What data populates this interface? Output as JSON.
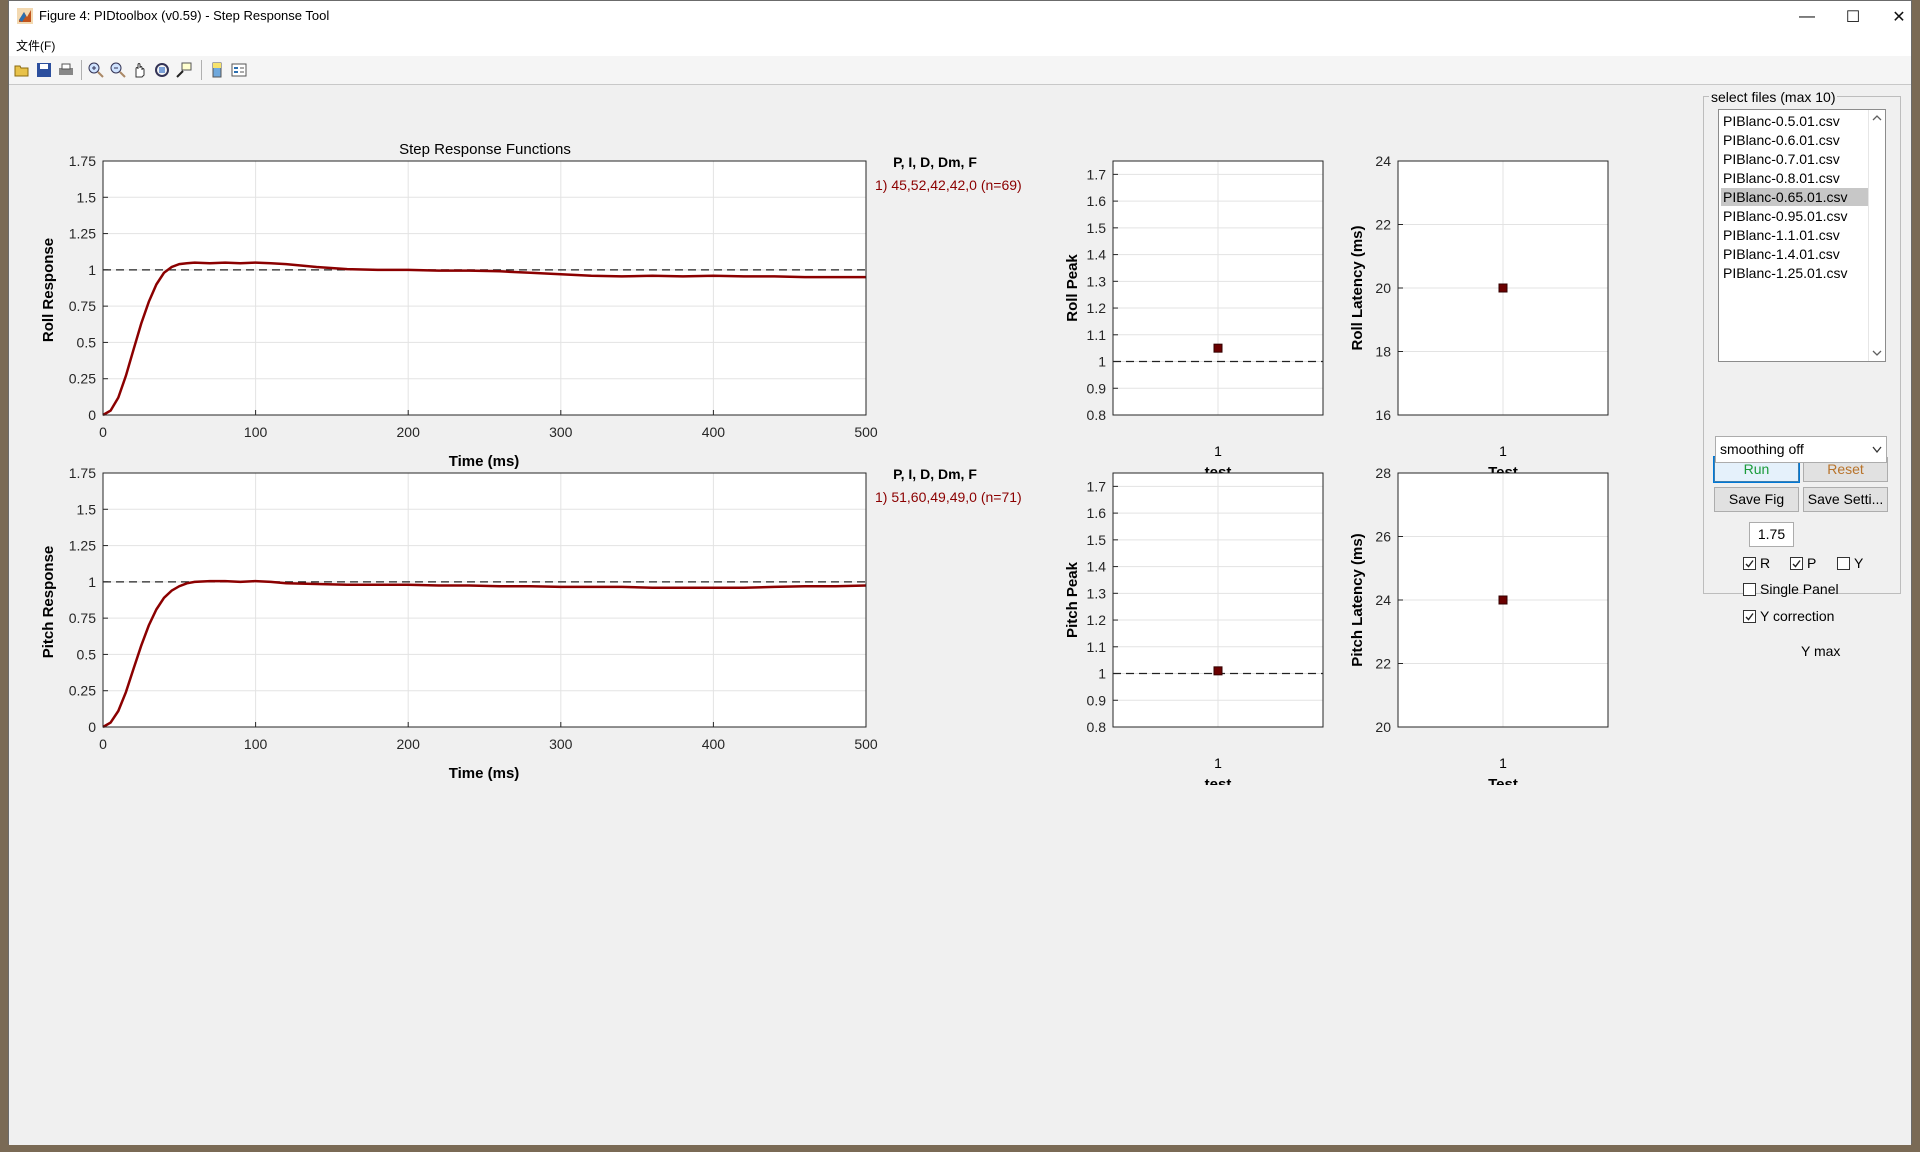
{
  "window": {
    "title": "Figure 4: PIDtoolbox (v0.59) - Step Response Tool",
    "controls": {
      "minimize": "—",
      "maximize": "☐",
      "close": "✕"
    }
  },
  "menu": {
    "file": "文件(F)"
  },
  "toolbar": {
    "buttons": [
      "open-icon",
      "save-icon",
      "print-icon",
      "zoom-in-icon",
      "zoom-out-icon",
      "pan-icon",
      "rotate-icon",
      "data-cursor-icon",
      "colorbar-icon",
      "legend-icon"
    ]
  },
  "plots": {
    "main_title": "Step Response Functions",
    "roll": {
      "ylabel": "Roll Response",
      "xlabel": "Time (ms)",
      "legend_header": "P, I, D, Dm, F",
      "legend_entry": "1) 45,52,42,42,0  (n=69)"
    },
    "pitch": {
      "ylabel": "Pitch Response",
      "xlabel": "Time (ms)",
      "legend_header": "P, I, D, Dm, F",
      "legend_entry": "1) 51,60,49,49,0  (n=71)"
    },
    "roll_peak": {
      "ylabel": "Roll Peak",
      "xlabel": "test",
      "xtick": "1"
    },
    "roll_latency": {
      "ylabel": "Roll Latency (ms)",
      "xlabel": "Test",
      "xtick": "1"
    },
    "pitch_peak": {
      "ylabel": "Pitch Peak",
      "xlabel": "test",
      "xtick": "1"
    },
    "pitch_latency": {
      "ylabel": "Pitch Latency (ms)",
      "xlabel": "Test",
      "xtick": "1"
    }
  },
  "chart_data": [
    {
      "type": "line",
      "name": "roll-step-response",
      "xlabel": "Time (ms)",
      "ylabel": "Roll Response",
      "xlim": [
        0,
        500
      ],
      "ylim": [
        0,
        1.75
      ],
      "xticks": [
        0,
        100,
        200,
        300,
        400,
        500
      ],
      "yticks": [
        0,
        0.25,
        0.5,
        0.75,
        1,
        1.25,
        1.5,
        1.75
      ],
      "ytick_labels": [
        "0",
        "0.25",
        "0.5",
        "0.75",
        "1",
        "1.25",
        "1.5",
        "1.75"
      ],
      "reference_line": 1,
      "grid": true,
      "series": [
        {
          "color": "#8b0000",
          "x": [
            0,
            5,
            10,
            15,
            20,
            25,
            30,
            35,
            40,
            45,
            50,
            55,
            60,
            70,
            80,
            90,
            100,
            110,
            120,
            140,
            160,
            180,
            200,
            220,
            240,
            260,
            280,
            300,
            320,
            340,
            360,
            380,
            400,
            420,
            440,
            460,
            480,
            500
          ],
          "y": [
            0,
            0.03,
            0.12,
            0.27,
            0.45,
            0.63,
            0.78,
            0.9,
            0.98,
            1.02,
            1.04,
            1.045,
            1.05,
            1.045,
            1.05,
            1.045,
            1.05,
            1.045,
            1.04,
            1.02,
            1.005,
            1.0,
            1.0,
            0.995,
            0.995,
            0.99,
            0.98,
            0.97,
            0.96,
            0.955,
            0.96,
            0.955,
            0.96,
            0.955,
            0.955,
            0.95,
            0.95,
            0.95
          ]
        }
      ]
    },
    {
      "type": "line",
      "name": "pitch-step-response",
      "xlabel": "Time (ms)",
      "ylabel": "Pitch Response",
      "xlim": [
        0,
        500
      ],
      "ylim": [
        0,
        1.75
      ],
      "xticks": [
        0,
        100,
        200,
        300,
        400,
        500
      ],
      "yticks": [
        0,
        0.25,
        0.5,
        0.75,
        1,
        1.25,
        1.5,
        1.75
      ],
      "ytick_labels": [
        "0",
        "0.25",
        "0.5",
        "0.75",
        "1",
        "1.25",
        "1.5",
        "1.75"
      ],
      "reference_line": 1,
      "grid": true,
      "series": [
        {
          "color": "#8b0000",
          "x": [
            0,
            5,
            10,
            15,
            20,
            25,
            30,
            35,
            40,
            45,
            50,
            55,
            60,
            70,
            80,
            90,
            100,
            110,
            120,
            140,
            160,
            180,
            200,
            220,
            240,
            260,
            280,
            300,
            320,
            340,
            360,
            380,
            400,
            420,
            440,
            460,
            480,
            500
          ],
          "y": [
            0,
            0.03,
            0.11,
            0.24,
            0.4,
            0.56,
            0.7,
            0.81,
            0.89,
            0.94,
            0.97,
            0.99,
            1.0,
            1.005,
            1.005,
            1.0,
            1.005,
            1.0,
            0.99,
            0.985,
            0.98,
            0.98,
            0.98,
            0.975,
            0.975,
            0.97,
            0.97,
            0.965,
            0.965,
            0.965,
            0.96,
            0.96,
            0.96,
            0.96,
            0.965,
            0.97,
            0.97,
            0.975
          ]
        }
      ]
    },
    {
      "type": "scatter",
      "name": "roll-peak",
      "ylabel": "Roll Peak",
      "xlabel": "test",
      "xlim": [
        0,
        2
      ],
      "ylim": [
        0.8,
        1.75
      ],
      "yticks": [
        0.8,
        0.9,
        1,
        1.1,
        1.2,
        1.3,
        1.4,
        1.5,
        1.6,
        1.7
      ],
      "ytick_labels": [
        "0.8",
        "0.9",
        "1",
        "1.1",
        "1.2",
        "1.3",
        "1.4",
        "1.5",
        "1.6",
        "1.7"
      ],
      "reference_line": 1,
      "points": [
        {
          "x": 1,
          "y": 1.05
        }
      ]
    },
    {
      "type": "scatter",
      "name": "roll-latency",
      "ylabel": "Roll Latency (ms)",
      "xlabel": "Test",
      "xlim": [
        0,
        2
      ],
      "ylim": [
        16,
        24
      ],
      "yticks": [
        16,
        18,
        20,
        22,
        24
      ],
      "ytick_labels": [
        "16",
        "18",
        "20",
        "22",
        "24"
      ],
      "points": [
        {
          "x": 1,
          "y": 20
        }
      ]
    },
    {
      "type": "scatter",
      "name": "pitch-peak",
      "ylabel": "Pitch Peak",
      "xlabel": "test",
      "xlim": [
        0,
        2
      ],
      "ylim": [
        0.8,
        1.75
      ],
      "yticks": [
        0.8,
        0.9,
        1,
        1.1,
        1.2,
        1.3,
        1.4,
        1.5,
        1.6,
        1.7
      ],
      "ytick_labels": [
        "0.8",
        "0.9",
        "1",
        "1.1",
        "1.2",
        "1.3",
        "1.4",
        "1.5",
        "1.6",
        "1.7"
      ],
      "reference_line": 1,
      "points": [
        {
          "x": 1,
          "y": 1.01
        }
      ]
    },
    {
      "type": "scatter",
      "name": "pitch-latency",
      "ylabel": "Pitch Latency (ms)",
      "xlabel": "Test",
      "xlim": [
        0,
        2
      ],
      "ylim": [
        20,
        28
      ],
      "yticks": [
        20,
        22,
        24,
        26,
        28
      ],
      "ytick_labels": [
        "20",
        "22",
        "24",
        "26",
        "28"
      ],
      "points": [
        {
          "x": 1,
          "y": 24
        }
      ]
    }
  ],
  "panel": {
    "title": "select files (max 10)",
    "files": [
      "PIBlanc-0.5.01.csv",
      "PIBlanc-0.6.01.csv",
      "PIBlanc-0.7.01.csv",
      "PIBlanc-0.8.01.csv",
      "PIBlanc-0.65.01.csv",
      "PIBlanc-0.95.01.csv",
      "PIBlanc-1.1.01.csv",
      "PIBlanc-1.4.01.csv",
      "PIBlanc-1.25.01.csv"
    ],
    "selected_index": 4,
    "run_label": "Run",
    "reset_label": "Reset",
    "save_fig_label": "Save Fig",
    "save_settings_label": "Save Setti...",
    "smoothing_value": "smoothing off",
    "cb_r_label": "R",
    "cb_p_label": "P",
    "cb_y_label": "Y",
    "cb_r_checked": true,
    "cb_p_checked": true,
    "cb_y_checked": false,
    "single_panel_label": "Single Panel",
    "single_panel_checked": false,
    "y_correction_label": "Y correction",
    "y_correction_checked": true,
    "ymax_value": "1.75",
    "ymax_label": "Y max",
    "run_color": "#1a9b3a",
    "reset_color": "#b8732a",
    "series_color": "#8b0000"
  }
}
